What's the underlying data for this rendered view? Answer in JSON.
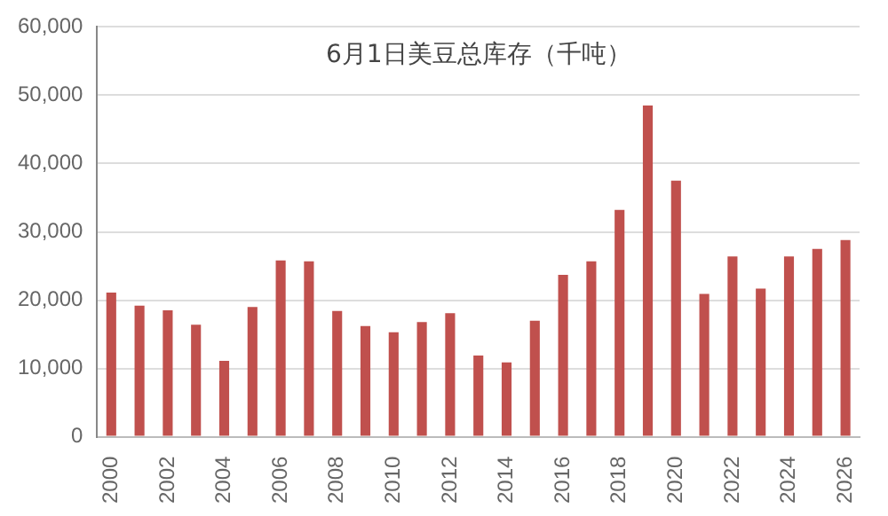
{
  "chart_data": {
    "type": "bar",
    "title": "6月1日美豆总库存（千吨）",
    "categories": [
      "2000",
      null,
      "2002",
      null,
      "2004",
      null,
      "2006",
      null,
      "2008",
      null,
      "2010",
      null,
      "2012",
      null,
      "2014",
      null,
      "2016",
      null,
      "2018",
      null,
      "2020",
      null,
      "2022",
      null,
      "2024",
      null,
      "2026"
    ],
    "values": [
      21100,
      19200,
      18500,
      16400,
      11100,
      19000,
      25800,
      25700,
      18400,
      16200,
      15300,
      16800,
      18100,
      11900,
      10900,
      17000,
      23700,
      25700,
      33200,
      48500,
      37500,
      20900,
      26400,
      21700,
      26400,
      27500,
      28800
    ],
    "color": "#c0504d",
    "ylim": [
      0,
      60000
    ],
    "yticks": [
      {
        "value": 0,
        "label": "0"
      },
      {
        "value": 10000,
        "label": "10,000"
      },
      {
        "value": 20000,
        "label": "20,000"
      },
      {
        "value": 30000,
        "label": "30,000"
      },
      {
        "value": 40000,
        "label": "40,000"
      },
      {
        "value": 50000,
        "label": "50,000"
      },
      {
        "value": 60000,
        "label": "60,000"
      }
    ],
    "grid": "y"
  }
}
